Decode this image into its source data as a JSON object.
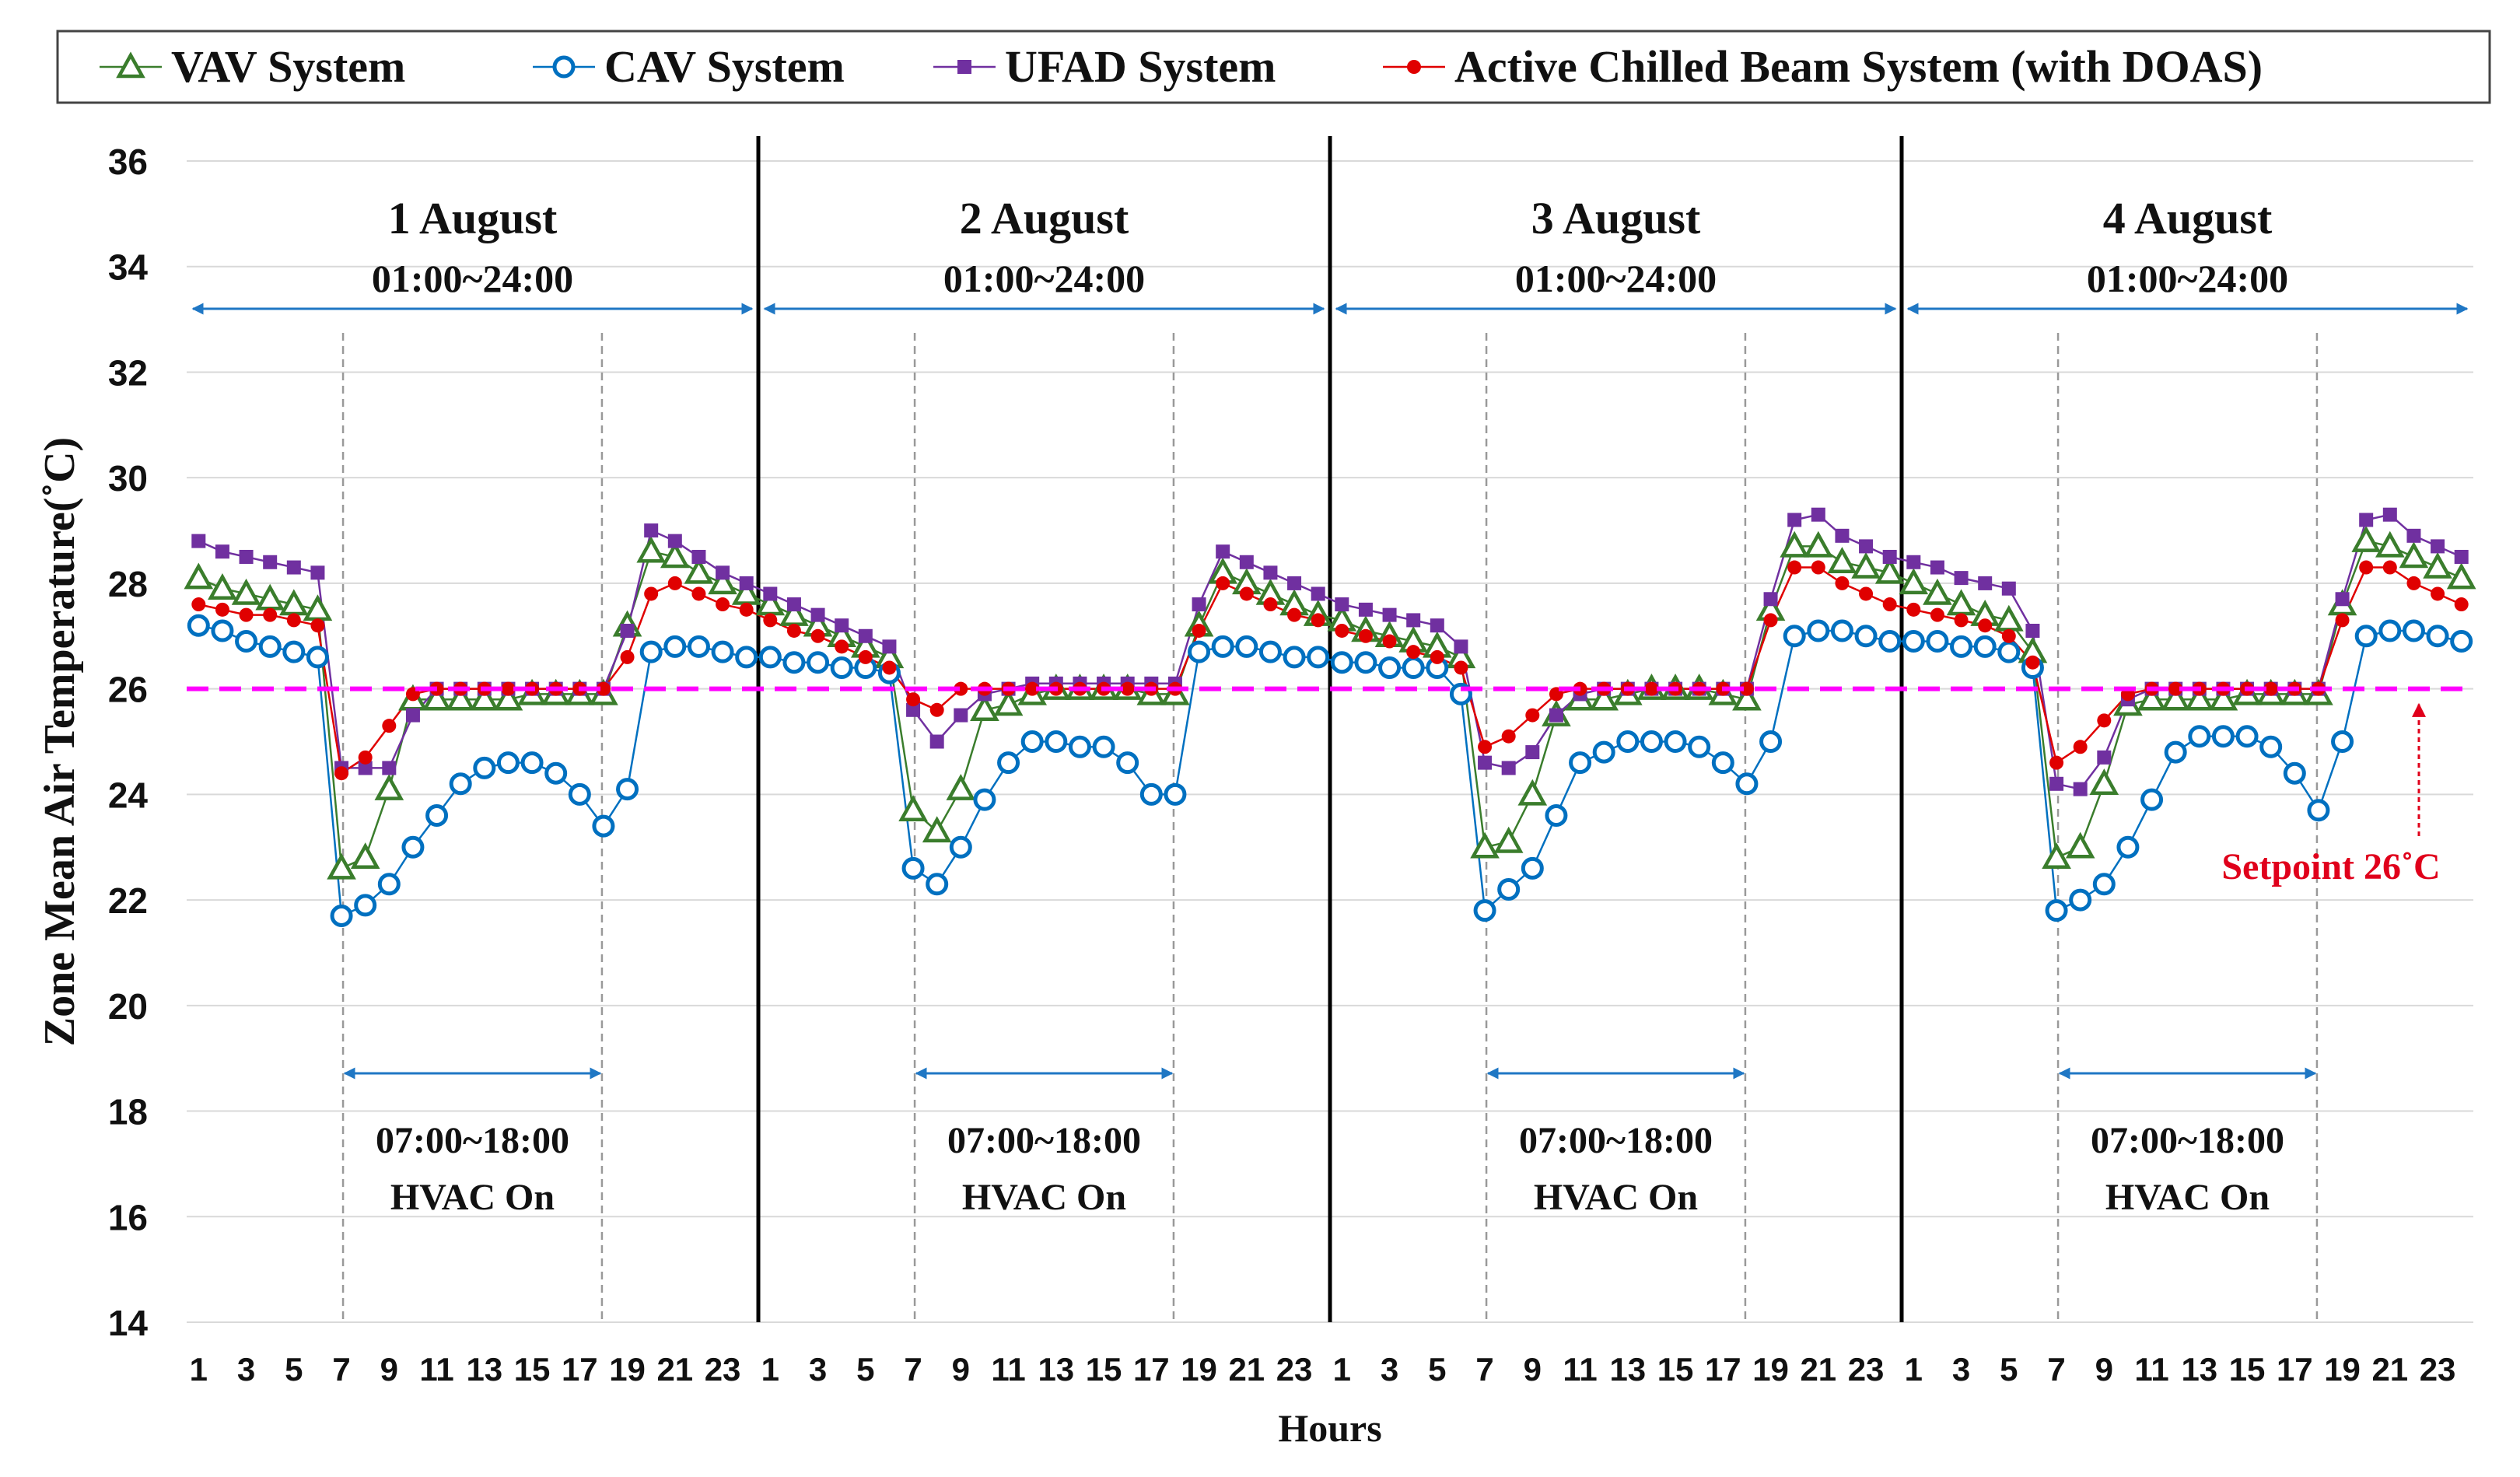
{
  "chart_data": {
    "type": "line",
    "ylabel": "Zone Mean Air Temperature(˚C)",
    "xlabel": "Hours",
    "ylim": [
      14,
      36
    ],
    "yticks": [
      14,
      16,
      18,
      20,
      22,
      24,
      26,
      28,
      30,
      32,
      34,
      36
    ],
    "xticks_per_day": [
      "1",
      "3",
      "5",
      "7",
      "9",
      "11",
      "13",
      "15",
      "17",
      "19",
      "21",
      "23"
    ],
    "hours_per_day": 24,
    "days": [
      {
        "title": "1 August",
        "range": "01:00~24:00",
        "hvac_time": "07:00~18:00",
        "hvac_label": "HVAC On"
      },
      {
        "title": "2 August",
        "range": "01:00~24:00",
        "hvac_time": "07:00~18:00",
        "hvac_label": "HVAC On"
      },
      {
        "title": "3 August",
        "range": "01:00~24:00",
        "hvac_time": "07:00~18:00",
        "hvac_label": "HVAC On"
      },
      {
        "title": "4 August",
        "range": "01:00~24:00",
        "hvac_time": "07:00~18:00",
        "hvac_label": "HVAC On"
      }
    ],
    "hvac_on_hours": [
      7,
      18
    ],
    "setpoint": {
      "value": 26,
      "label": "Setpoint 26˚C",
      "color": "#ff00ff",
      "label_color": "#e0001b"
    },
    "legend_position": "top",
    "series": [
      {
        "name": "VAV System",
        "color": "#3a7d2c",
        "marker": "triangle",
        "values": [
          28.1,
          27.9,
          27.8,
          27.7,
          27.6,
          27.5,
          22.6,
          22.8,
          24.1,
          25.8,
          25.8,
          25.8,
          25.8,
          25.8,
          25.9,
          25.9,
          25.9,
          25.9,
          27.2,
          28.6,
          28.5,
          28.2,
          28.0,
          27.8,
          27.6,
          27.4,
          27.2,
          27.0,
          26.8,
          26.6,
          23.7,
          23.3,
          24.1,
          25.6,
          25.7,
          25.9,
          26.0,
          26.0,
          26.0,
          26.0,
          25.9,
          25.9,
          27.2,
          28.2,
          28.0,
          27.8,
          27.6,
          27.4,
          27.3,
          27.1,
          27.0,
          26.9,
          26.8,
          26.6,
          23.0,
          23.1,
          24.0,
          25.5,
          25.8,
          25.8,
          25.9,
          26.0,
          26.0,
          26.0,
          25.9,
          25.8,
          27.5,
          28.7,
          28.7,
          28.4,
          28.3,
          28.2,
          28.0,
          27.8,
          27.6,
          27.4,
          27.3,
          26.7,
          22.8,
          23.0,
          24.2,
          25.7,
          25.8,
          25.8,
          25.8,
          25.8,
          25.9,
          25.9,
          25.9,
          25.9,
          27.6,
          28.8,
          28.7,
          28.5,
          28.3,
          28.1
        ]
      },
      {
        "name": "CAV System",
        "color": "#0070c0",
        "marker": "circle",
        "values": [
          27.2,
          27.1,
          26.9,
          26.8,
          26.7,
          26.6,
          21.7,
          21.9,
          22.3,
          23.0,
          23.6,
          24.2,
          24.5,
          24.6,
          24.6,
          24.4,
          24.0,
          23.4,
          24.1,
          26.7,
          26.8,
          26.8,
          26.7,
          26.6,
          26.6,
          26.5,
          26.5,
          26.4,
          26.4,
          26.3,
          22.6,
          22.3,
          23.0,
          23.9,
          24.6,
          25.0,
          25.0,
          24.9,
          24.9,
          24.6,
          24.0,
          24.0,
          26.7,
          26.8,
          26.8,
          26.7,
          26.6,
          26.6,
          26.5,
          26.5,
          26.4,
          26.4,
          26.4,
          25.9,
          21.8,
          22.2,
          22.6,
          23.6,
          24.6,
          24.8,
          25.0,
          25.0,
          25.0,
          24.9,
          24.6,
          24.2,
          25.0,
          27.0,
          27.1,
          27.1,
          27.0,
          26.9,
          26.9,
          26.9,
          26.8,
          26.8,
          26.7,
          26.4,
          21.8,
          22.0,
          22.3,
          23.0,
          23.9,
          24.8,
          25.1,
          25.1,
          25.1,
          24.9,
          24.4,
          23.7,
          25.0,
          27.0,
          27.1,
          27.1,
          27.0,
          26.9
        ]
      },
      {
        "name": "UFAD System",
        "color": "#7030a0",
        "marker": "square",
        "values": [
          28.8,
          28.6,
          28.5,
          28.4,
          28.3,
          28.2,
          24.5,
          24.5,
          24.5,
          25.5,
          26.0,
          26.0,
          26.0,
          26.0,
          26.0,
          26.0,
          26.0,
          26.0,
          27.1,
          29.0,
          28.8,
          28.5,
          28.2,
          28.0,
          27.8,
          27.6,
          27.4,
          27.2,
          27.0,
          26.8,
          25.6,
          25.0,
          25.5,
          25.9,
          26.0,
          26.1,
          26.1,
          26.1,
          26.1,
          26.1,
          26.1,
          26.1,
          27.6,
          28.6,
          28.4,
          28.2,
          28.0,
          27.8,
          27.6,
          27.5,
          27.4,
          27.3,
          27.2,
          26.8,
          24.6,
          24.5,
          24.8,
          25.5,
          25.9,
          26.0,
          26.0,
          26.0,
          26.0,
          26.0,
          26.0,
          26.0,
          27.7,
          29.2,
          29.3,
          28.9,
          28.7,
          28.5,
          28.4,
          28.3,
          28.1,
          28.0,
          27.9,
          27.1,
          24.2,
          24.1,
          24.7,
          25.8,
          26.0,
          26.0,
          26.0,
          26.0,
          26.0,
          26.0,
          26.0,
          26.0,
          27.7,
          29.2,
          29.3,
          28.9,
          28.7,
          28.5
        ]
      },
      {
        "name": "Active Chilled Beam System (with DOAS)",
        "color": "#e00000",
        "marker": "dot",
        "values": [
          27.6,
          27.5,
          27.4,
          27.4,
          27.3,
          27.2,
          24.4,
          24.7,
          25.3,
          25.9,
          26.0,
          26.0,
          26.0,
          26.0,
          26.0,
          26.0,
          26.0,
          26.0,
          26.6,
          27.8,
          28.0,
          27.8,
          27.6,
          27.5,
          27.3,
          27.1,
          27.0,
          26.8,
          26.6,
          26.4,
          25.8,
          25.6,
          26.0,
          26.0,
          26.0,
          26.0,
          26.0,
          26.0,
          26.0,
          26.0,
          26.0,
          26.0,
          27.1,
          28.0,
          27.8,
          27.6,
          27.4,
          27.3,
          27.1,
          27.0,
          26.9,
          26.7,
          26.6,
          26.4,
          24.9,
          25.1,
          25.5,
          25.9,
          26.0,
          26.0,
          26.0,
          26.0,
          26.0,
          26.0,
          26.0,
          26.0,
          27.3,
          28.3,
          28.3,
          28.0,
          27.8,
          27.6,
          27.5,
          27.4,
          27.3,
          27.2,
          27.0,
          26.5,
          24.6,
          24.9,
          25.4,
          25.9,
          26.0,
          26.0,
          26.0,
          26.0,
          26.0,
          26.0,
          26.0,
          26.0,
          27.3,
          28.3,
          28.3,
          28.0,
          27.8,
          27.6
        ]
      }
    ]
  }
}
